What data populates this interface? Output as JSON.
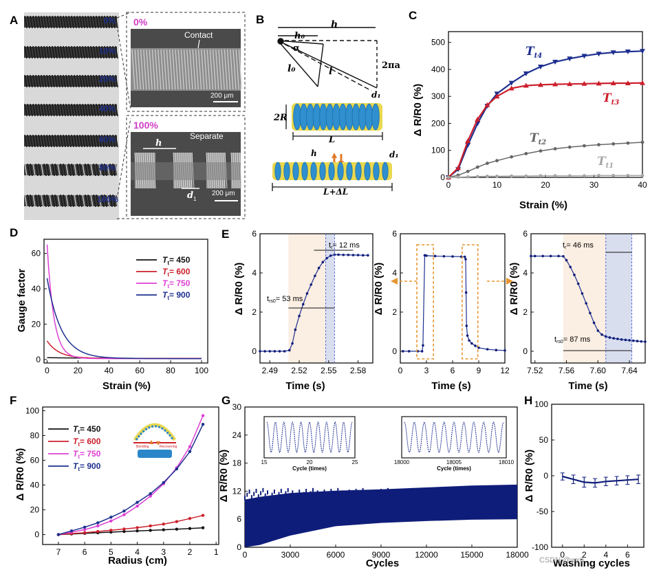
{
  "panel_labels": [
    "A",
    "B",
    "C",
    "D",
    "E",
    "F",
    "G",
    "H"
  ],
  "panelA": {
    "strain_labels": [
      "0%",
      "10%",
      "20%",
      "40%",
      "60%",
      "80%",
      "100%"
    ],
    "sem_top": {
      "label": "0%",
      "annotation": "Contact",
      "scale": "200 μm"
    },
    "sem_bottom": {
      "label": "100%",
      "annotation": "Separate",
      "h_label": "h",
      "d_label": "d",
      "d_sub": "1",
      "scale": "200 μm"
    }
  },
  "panelB": {
    "h": "h",
    "h0": "h₀",
    "alpha": "α",
    "l0": "l₀",
    "l": "l",
    "two_pi_a": "2πa",
    "d1": "d₁",
    "two_R": "2R",
    "L": "L",
    "h_bottom": "h",
    "d1_bottom": "d₁",
    "L_dL": "L+ΔL"
  },
  "colors": {
    "black": "#111111",
    "red": "#cc1f2b",
    "magenta": "#dd3fd3",
    "blue": "#1d2f8f",
    "navy": "#0f1d7a",
    "gray": "#666666",
    "lightgray": "#a6a6a6",
    "orange": "#e8952f",
    "pink_shade": "#fbeee2",
    "blue_shade": "#d9deef",
    "title_pink": "#d03cc5"
  },
  "chart_data": [
    {
      "panel": "C",
      "type": "line",
      "xlabel": "Strain (%)",
      "ylabel": "Δ R/R0 (%)",
      "xlim": [
        0,
        40
      ],
      "ylim": [
        0,
        540
      ],
      "xticks": [
        0,
        10,
        20,
        30,
        40
      ],
      "yticks": [
        0,
        100,
        200,
        300,
        400,
        500
      ],
      "series": [
        {
          "name": "Tt4",
          "sub": "t4",
          "color": "#1d2f8f",
          "marker": "v",
          "x": [
            0,
            2,
            4,
            6,
            8,
            10,
            13,
            16,
            19,
            22,
            25,
            28,
            31,
            34,
            37,
            40
          ],
          "values": [
            0,
            30,
            120,
            200,
            265,
            310,
            350,
            385,
            410,
            428,
            440,
            450,
            458,
            463,
            466,
            468
          ]
        },
        {
          "name": "Tt3",
          "sub": "t3",
          "color": "#cc1f2b",
          "marker": "^",
          "x": [
            0,
            2,
            4,
            6,
            8,
            10,
            13,
            16,
            19,
            22,
            25,
            28,
            31,
            34,
            37,
            40
          ],
          "values": [
            0,
            35,
            135,
            215,
            268,
            300,
            330,
            340,
            343,
            345,
            346,
            347,
            348,
            349,
            349,
            350
          ]
        },
        {
          "name": "Tt2",
          "sub": "t2",
          "color": "#666666",
          "marker": "o",
          "x": [
            0,
            2,
            4,
            6,
            8,
            10,
            13,
            16,
            19,
            22,
            25,
            28,
            31,
            34,
            37,
            40
          ],
          "values": [
            0,
            8,
            22,
            38,
            52,
            62,
            76,
            88,
            98,
            106,
            112,
            117,
            121,
            124,
            127,
            130
          ]
        },
        {
          "name": "Tt1",
          "sub": "t1",
          "color": "#a6a6a6",
          "marker": "o",
          "x": [
            0,
            2,
            4,
            6,
            8,
            10,
            13,
            16,
            19,
            22,
            25,
            28,
            31,
            34,
            37,
            40
          ],
          "values": [
            0,
            1,
            2,
            3,
            4,
            4,
            5,
            5,
            6,
            6,
            6,
            6,
            7,
            7,
            7,
            7
          ]
        }
      ]
    },
    {
      "panel": "D",
      "type": "line",
      "xlabel": "Strain (%)",
      "ylabel": "Gauge factor",
      "xlim": [
        -2,
        104
      ],
      "ylim": [
        -2,
        68
      ],
      "xticks": [
        0,
        20,
        40,
        60,
        80,
        100
      ],
      "yticks": [
        0,
        20,
        40,
        60
      ],
      "legend_prefix": "T",
      "legend_sub": "t",
      "series": [
        {
          "name": "450",
          "label": "= 450",
          "color": "#111111",
          "x0": 0,
          "x1": 100,
          "y0": 1.0,
          "yinf": 0.5,
          "k": 0.02
        },
        {
          "name": "600",
          "label": "= 600",
          "color": "#cc1f2b",
          "x0": 0,
          "x1": 100,
          "y0": 10.5,
          "yinf": 0.6,
          "k": 0.13
        },
        {
          "name": "750",
          "label": "= 750",
          "color": "#dd3fd3",
          "x0": 0,
          "x1": 100,
          "y0": 65,
          "yinf": 0.5,
          "k": 0.23
        },
        {
          "name": "900",
          "label": "= 900",
          "color": "#1d2f8f",
          "x0": 0,
          "x1": 100,
          "y0": 46,
          "yinf": 0.5,
          "k": 0.11
        }
      ]
    },
    {
      "panel": "E1",
      "type": "line",
      "xlabel": "Time (s)",
      "ylabel": "Δ R/R0 (%)",
      "xlim": [
        2.48,
        2.595
      ],
      "ylim": [
        -0.6,
        6
      ],
      "xticks": [
        2.49,
        2.52,
        2.55,
        2.58
      ],
      "yticks": [
        0,
        2,
        4,
        6
      ],
      "annotations": {
        "tr": "t",
        "tr_sub": "r",
        "tr_val": "= 12 ms",
        "trs": "t",
        "trs_sub": "rs0",
        "trs_val": "= 53 ms"
      },
      "x": [
        2.48,
        2.485,
        2.49,
        2.495,
        2.5,
        2.505,
        2.51,
        2.513,
        2.516,
        2.52,
        2.524,
        2.528,
        2.532,
        2.536,
        2.54,
        2.544,
        2.548,
        2.552,
        2.556,
        2.56,
        2.565,
        2.57,
        2.575,
        2.58,
        2.585,
        2.59
      ],
      "values": [
        0,
        0,
        0,
        0,
        0,
        0,
        0.05,
        0.4,
        1.1,
        1.8,
        2.4,
        2.95,
        3.4,
        3.85,
        4.25,
        4.55,
        4.75,
        4.88,
        4.93,
        4.93,
        4.92,
        4.92,
        4.91,
        4.91,
        4.9,
        4.9
      ]
    },
    {
      "panel": "E2",
      "type": "line",
      "xlabel": "Time (s)",
      "ylabel": "Δ R/R0 (%)",
      "xlim": [
        0,
        12
      ],
      "ylim": [
        -0.6,
        6
      ],
      "xticks": [
        0,
        3,
        6,
        9,
        12
      ],
      "yticks": [
        0,
        2,
        4,
        6
      ],
      "x": [
        0.3,
        1,
        2,
        2.5,
        2.6,
        2.8,
        3,
        4,
        5,
        6,
        7,
        7.4,
        7.5,
        7.55,
        7.6,
        7.7,
        7.9,
        8.2,
        8.6,
        9,
        10,
        11,
        12
      ],
      "values": [
        0,
        0,
        0,
        0,
        0.3,
        4.9,
        4.88,
        4.86,
        4.85,
        4.84,
        4.83,
        4.82,
        4.7,
        3.0,
        1.3,
        0.8,
        0.55,
        0.4,
        0.28,
        0.18,
        0.1,
        0.06,
        0.04
      ]
    },
    {
      "panel": "E3",
      "type": "line",
      "xlabel": "Time (s)",
      "ylabel": "Δ R/R0 (%)",
      "xlim": [
        7.515,
        7.66
      ],
      "ylim": [
        -0.6,
        6
      ],
      "xticks": [
        7.52,
        7.56,
        7.6,
        7.64
      ],
      "yticks": [
        0,
        2,
        4,
        6
      ],
      "annotations": {
        "tr": "t",
        "tr_sub": "r",
        "tr_val": "= 46 ms",
        "trs": "t",
        "trs_sub": "rs0",
        "trs_val": "= 87 ms"
      },
      "x": [
        7.515,
        7.52,
        7.53,
        7.54,
        7.55,
        7.556,
        7.56,
        7.565,
        7.57,
        7.575,
        7.58,
        7.585,
        7.59,
        7.595,
        7.6,
        7.605,
        7.61,
        7.615,
        7.62,
        7.625,
        7.63,
        7.635,
        7.64,
        7.645,
        7.65,
        7.655,
        7.66
      ],
      "values": [
        4.86,
        4.86,
        4.86,
        4.86,
        4.86,
        4.85,
        4.65,
        4.3,
        3.9,
        3.45,
        2.95,
        2.45,
        1.95,
        1.45,
        1.05,
        0.85,
        0.75,
        0.7,
        0.66,
        0.63,
        0.6,
        0.58,
        0.56,
        0.54,
        0.52,
        0.5,
        0.49
      ]
    },
    {
      "panel": "F",
      "type": "line",
      "xlabel": "Radius (cm)",
      "ylabel": "Δ R/R0 (%)",
      "xlim": [
        7.6,
        0.9
      ],
      "ylim": [
        -8,
        103
      ],
      "xticks": [
        7,
        6,
        5,
        4,
        3,
        2,
        1
      ],
      "yticks": [
        0,
        20,
        40,
        60,
        80,
        100
      ],
      "legend_prefix": "T",
      "legend_sub": "t",
      "inset_labels": {
        "left": "Bending",
        "right": "Recovering"
      },
      "series": [
        {
          "name": "450",
          "label": "= 450",
          "color": "#111111",
          "x": [
            7,
            6.5,
            6,
            5.5,
            5,
            4.5,
            4,
            3.5,
            3,
            2.5,
            2,
            1.5
          ],
          "values": [
            0,
            0.5,
            1,
            1.5,
            2,
            2.5,
            3,
            3.4,
            3.9,
            4.4,
            4.9,
            5.5
          ]
        },
        {
          "name": "600",
          "label": "= 600",
          "color": "#cc1f2b",
          "x": [
            7,
            6.5,
            6,
            5.5,
            5,
            4.5,
            4,
            3.5,
            3,
            2.5,
            2,
            1.5
          ],
          "values": [
            0,
            0.8,
            1.5,
            2.5,
            3.5,
            4.5,
            5.6,
            7,
            8.5,
            10.5,
            13,
            15.5
          ]
        },
        {
          "name": "750",
          "label": "= 750",
          "color": "#dd3fd3",
          "x": [
            7,
            6.5,
            6,
            5.5,
            5,
            4.5,
            4,
            3.5,
            3,
            2.5,
            2,
            1.5
          ],
          "values": [
            0,
            2,
            4,
            7,
            11,
            16,
            23,
            31,
            41,
            54,
            71,
            96
          ]
        },
        {
          "name": "900",
          "label": "= 900",
          "color": "#1d2f8f",
          "x": [
            7,
            6.5,
            6,
            5.5,
            5,
            4.5,
            4,
            3.5,
            3,
            2.5,
            2,
            1.5
          ],
          "values": [
            0,
            3,
            6,
            9.5,
            14,
            19,
            26,
            33,
            42,
            53,
            67,
            89
          ]
        }
      ]
    },
    {
      "panel": "G",
      "type": "area",
      "xlabel": "Cycles",
      "ylabel": "Δ R/R0 (%)",
      "xlim": [
        0,
        18000
      ],
      "ylim": [
        0,
        30
      ],
      "xticks": [
        0,
        3000,
        6000,
        9000,
        12000,
        15000,
        18000
      ],
      "yticks": [
        0,
        6,
        12,
        18,
        24,
        30
      ],
      "upper": {
        "x": [
          0,
          1000,
          3000,
          6000,
          9000,
          12000,
          15000,
          18000
        ],
        "values": [
          10.2,
          10.8,
          11.6,
          12.1,
          12.4,
          12.8,
          13.2,
          13.4
        ]
      },
      "lower": {
        "x": [
          0,
          1000,
          3000,
          6000,
          9000,
          12000,
          15000,
          18000
        ],
        "values": [
          0,
          0.5,
          2.5,
          4.5,
          5.2,
          5.6,
          5.9,
          6.0
        ]
      },
      "insets": [
        {
          "xticks": [
            "15",
            "20",
            "25"
          ],
          "xlabel": "Cycle (times)",
          "cycles": 10
        },
        {
          "xticks": [
            "18000",
            "18005",
            "18010"
          ],
          "xlabel": "Cycle (times)",
          "cycles": 10
        }
      ]
    },
    {
      "panel": "H",
      "type": "line",
      "xlabel": "Washing cycles",
      "ylabel": "Δ R/R0 (%)",
      "xlim": [
        -1,
        7.5
      ],
      "ylim": [
        -100,
        100
      ],
      "xticks": [
        0,
        2,
        4,
        6
      ],
      "yticks": [
        -100,
        -50,
        0,
        50,
        100
      ],
      "x": [
        0,
        1,
        2,
        3,
        4,
        5,
        6,
        7
      ],
      "values": [
        -1,
        -5,
        -9,
        -10,
        -8,
        -7,
        -6,
        -5
      ],
      "err": [
        5,
        6,
        7,
        6,
        6,
        6,
        6,
        6
      ]
    }
  ],
  "watermark": "CSDN @wx0"
}
